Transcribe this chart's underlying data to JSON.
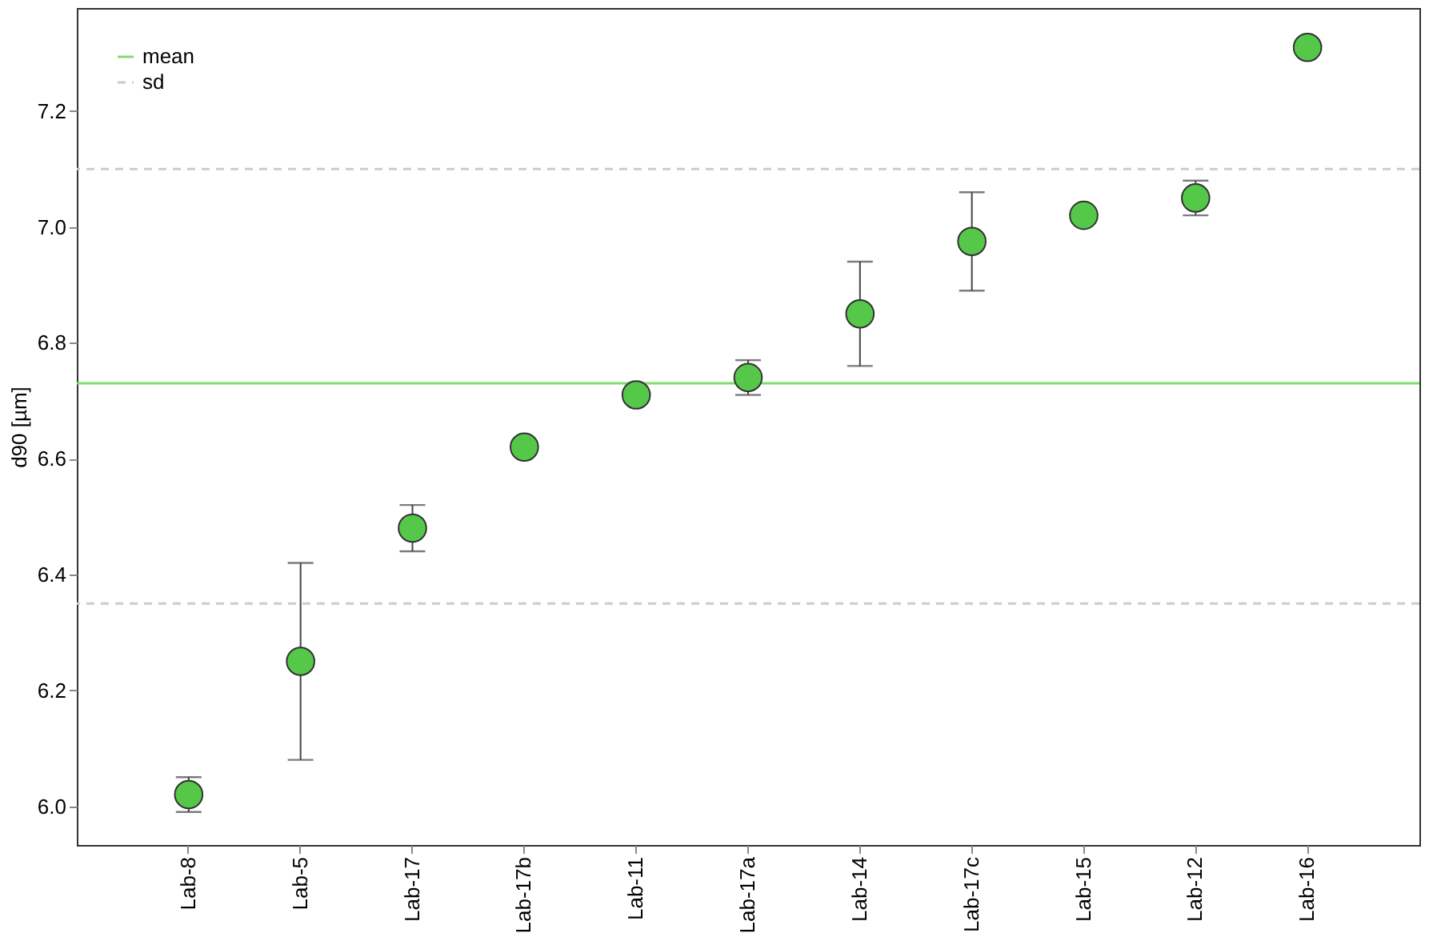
{
  "chart_data": {
    "type": "scatter",
    "ylabel": "d90 [µm]",
    "categories": [
      "Lab-8",
      "Lab-5",
      "Lab-17",
      "Lab-17b",
      "Lab-11",
      "Lab-17a",
      "Lab-14",
      "Lab-17c",
      "Lab-15",
      "Lab-12",
      "Lab-16"
    ],
    "series": [
      {
        "color": "#55c84a",
        "values": [
          6.02,
          6.25,
          6.48,
          6.62,
          6.71,
          6.74,
          6.85,
          6.975,
          7.02,
          7.05,
          7.31
        ],
        "errors": [
          0.03,
          0.17,
          0.04,
          null,
          null,
          0.03,
          0.09,
          0.085,
          null,
          0.03,
          null
        ]
      }
    ],
    "ylim": [
      5.933,
      7.378
    ],
    "yticks": [
      {
        "value": 6,
        "label": "6.0"
      },
      6.2,
      6.4,
      6.6,
      6.8,
      {
        "value": 7,
        "label": "7.0"
      },
      7.2
    ],
    "ref_lines": [
      {
        "axis": "y",
        "value": 6.73,
        "label": "mean",
        "color": "#7fdc6f",
        "line_style": "solid"
      },
      {
        "axis": "y",
        "value": 7.1,
        "label": "sd",
        "color": "#cccccc",
        "line_style": "dashed"
      },
      {
        "axis": "y",
        "value": 6.35,
        "color": "#cccccc",
        "line_style": "dashed"
      }
    ],
    "legend": "top left",
    "marker": "circle",
    "grid": false
  }
}
